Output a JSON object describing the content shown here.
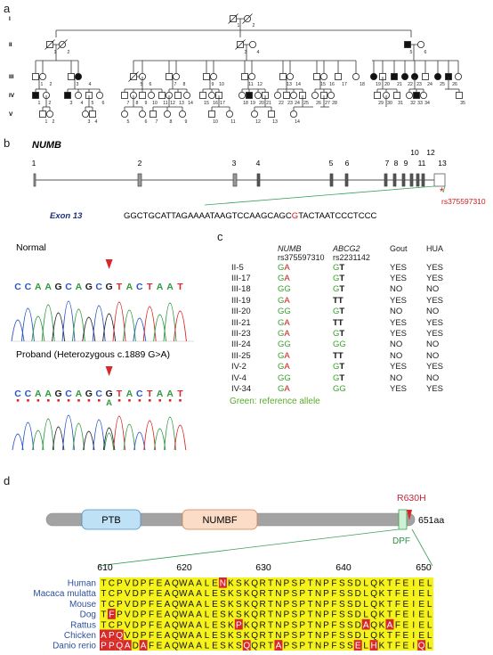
{
  "figure": {
    "panel_labels": {
      "a": "a",
      "b": "b",
      "c": "c",
      "d": "d"
    },
    "pedigree": {
      "generations": [
        "I",
        "II",
        "III",
        "IV",
        "V"
      ],
      "gen_I": [
        "1",
        "2"
      ],
      "gen_II": [
        "1",
        "2",
        "3",
        "4",
        "5",
        "6"
      ],
      "gen_III": [
        "1",
        "2",
        "3",
        "4",
        "5",
        "6",
        "7",
        "8",
        "9",
        "10",
        "11",
        "12",
        "13",
        "14",
        "15",
        "16",
        "17",
        "18",
        "19",
        "20",
        "21",
        "22",
        "23",
        "24",
        "25",
        "26"
      ],
      "gen_IV": [
        "1",
        "2",
        "3",
        "4",
        "5",
        "6",
        "7",
        "8",
        "9",
        "10",
        "11",
        "12",
        "13",
        "14",
        "15",
        "16",
        "17",
        "18",
        "19",
        "20",
        "21",
        "22",
        "23",
        "24",
        "25",
        "26",
        "27",
        "28",
        "29",
        "30",
        "31",
        "32",
        "33",
        "34",
        "35"
      ],
      "gen_V": [
        "1",
        "2",
        "3",
        "4",
        "5",
        "6",
        "7",
        "8",
        "9",
        "10",
        "11",
        "12",
        "13",
        "14"
      ]
    },
    "gene": {
      "name": "NUMB",
      "exons": [
        "1",
        "2",
        "3",
        "4",
        "5",
        "6",
        "7",
        "8",
        "9",
        "10",
        "11",
        "12",
        "13"
      ],
      "exon_label": "Exon 13",
      "seq_before": "GGCTGCATTAGAAAATAAGTCCAAGCAGC",
      "seq_variant": "G",
      "seq_after": "TACTAATCCCTCCC",
      "star": "*",
      "snp": "rs375597310"
    },
    "chromatogram": {
      "normal_label": "Normal",
      "proband_label": "Proband  (Heterozygous c.1889 G>A)",
      "bases": [
        "C",
        "C",
        "A",
        "A",
        "G",
        "C",
        "A",
        "G",
        "C",
        "G",
        "T",
        "A",
        "C",
        "T",
        "A",
        "A",
        "T"
      ],
      "alt_base": "A",
      "base_colors": {
        "A": "#2e9a3e",
        "C": "#2a55c8",
        "G": "#222222",
        "T": "#d8262c"
      },
      "marker_color": "#d8262c"
    },
    "table": {
      "headers": {
        "sample": "",
        "numb_gene": "NUMB",
        "numb_snp": "rs375597310",
        "abcg2_gene": "ABCG2",
        "abcg2_snp": "rs2231142",
        "gout": "Gout",
        "hua": "HUA"
      },
      "rows": [
        {
          "id": "II-5",
          "numb": [
            "G",
            "A"
          ],
          "abcg2": [
            "G",
            "T"
          ],
          "gout": "YES",
          "hua": "YES"
        },
        {
          "id": "III-17",
          "numb": [
            "G",
            "A"
          ],
          "abcg2": [
            "G",
            "T"
          ],
          "gout": "YES",
          "hua": "YES"
        },
        {
          "id": "III-18",
          "numb": [
            "G",
            "G"
          ],
          "abcg2": [
            "G",
            "T"
          ],
          "gout": "NO",
          "hua": "NO"
        },
        {
          "id": "III-19",
          "numb": [
            "G",
            "A"
          ],
          "abcg2": [
            "T",
            "T"
          ],
          "gout": "YES",
          "hua": "YES"
        },
        {
          "id": "III-20",
          "numb": [
            "G",
            "G"
          ],
          "abcg2": [
            "G",
            "T"
          ],
          "gout": "NO",
          "hua": "NO"
        },
        {
          "id": "III-21",
          "numb": [
            "G",
            "A"
          ],
          "abcg2": [
            "T",
            "T"
          ],
          "gout": "YES",
          "hua": "YES"
        },
        {
          "id": "III-23",
          "numb": [
            "G",
            "A"
          ],
          "abcg2": [
            "G",
            "T"
          ],
          "gout": "YES",
          "hua": "YES"
        },
        {
          "id": "III-24",
          "numb": [
            "G",
            "G"
          ],
          "abcg2": [
            "G",
            "G"
          ],
          "gout": "NO",
          "hua": "NO"
        },
        {
          "id": "III-25",
          "numb": [
            "G",
            "A"
          ],
          "abcg2": [
            "T",
            "T"
          ],
          "gout": "NO",
          "hua": "NO"
        },
        {
          "id": "IV-2",
          "numb": [
            "G",
            "A"
          ],
          "abcg2": [
            "G",
            "T"
          ],
          "gout": "YES",
          "hua": "YES"
        },
        {
          "id": "IV-4",
          "numb": [
            "G",
            "G"
          ],
          "abcg2": [
            "G",
            "T"
          ],
          "gout": "NO",
          "hua": "NO"
        },
        {
          "id": "IV-34",
          "numb": [
            "G",
            "A"
          ],
          "abcg2": [
            "G",
            "G"
          ],
          "gout": "YES",
          "hua": "YES"
        }
      ],
      "footnote": "Green: reference allele",
      "ref_color": "#3aa02e",
      "alt_color": "#d01818"
    },
    "protein": {
      "domain_ptb": "PTB",
      "domain_numbf": "NUMBF",
      "motif": "DPF",
      "mutation": "R630H",
      "length": "651aa",
      "ticks": [
        "610",
        "620",
        "630",
        "640",
        "650"
      ],
      "species": [
        "Human",
        "Macaca mulatta",
        "Mouse",
        "Dog",
        "Rattus",
        "Chicken",
        "Danio rerio"
      ],
      "sequences": [
        "TCPVDPFEAQWAALENKSKQRTNPSPTNPFSSDLQKTFEIEL",
        "TCPVDPFEAQWAALESKSKQRTNPSPTNPFSSDLQKTFEIEL",
        "TCPVDPFEAQWAALESKSKQRTNPSPTNPFSSDLQKTFEIEL",
        "TFPVDPFEAQWAALESKSKQRTNPSPTNPFSSDLQKTFEIEL",
        "TCPVDPFEAQWAALESKPKQRTNPSPTNPFSSDAQKAFEIEL",
        "APQVDPFEAQWAALESKSKQRTNPSPTNPFSSDLQKTFEIEL",
        "PPQADAFEAQWAALESKSQQRTAPSPTNPFSSELHKTFEIQL"
      ],
      "colors": {
        "conserved_bg": "#f6f21b",
        "variant_bg": "#d8272a",
        "species_text": "#2d4f9e"
      }
    }
  }
}
